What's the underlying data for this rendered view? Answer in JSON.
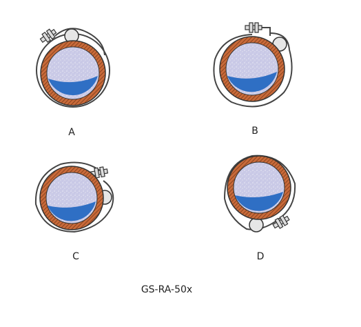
{
  "figure": {
    "panels": [
      {
        "id": "A",
        "label": "A"
      },
      {
        "id": "B",
        "label": "B"
      },
      {
        "id": "C",
        "label": "C"
      },
      {
        "id": "D",
        "label": "D"
      }
    ],
    "caption": "GS-RA-50x"
  },
  "colors": {
    "insulation_fill": "#c9c9e6",
    "insulation_speckle": "#ffffff",
    "liquid": "#2f6fc4",
    "pipe_wall": "#c86a3a",
    "pipe_hatch": "#7a3a18",
    "clamp_band": "#444444",
    "roller_fill": "#e6e6e6",
    "outline": "#333333"
  }
}
